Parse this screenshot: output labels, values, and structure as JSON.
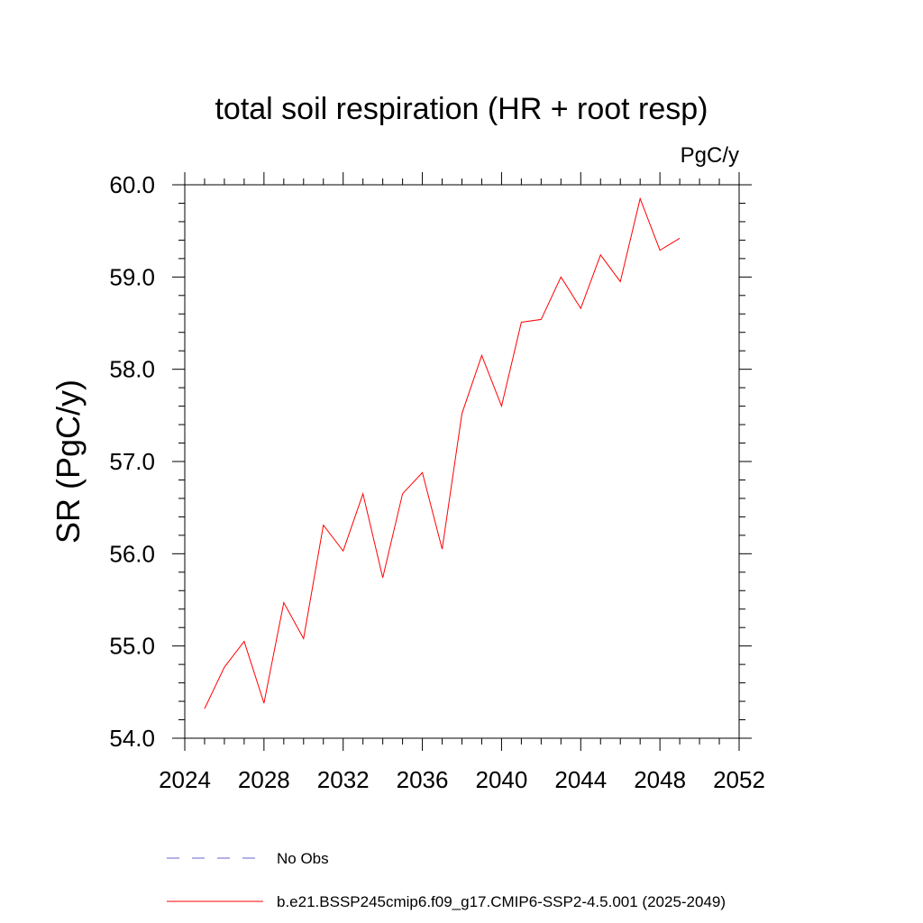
{
  "chart_data": {
    "type": "line",
    "title": "total soil respiration (HR + root resp)",
    "units_label": "PgC/y",
    "ylabel": "SR  (PgC/y)",
    "xlabel": "",
    "xlim": [
      2024,
      2052
    ],
    "ylim": [
      54.0,
      60.0
    ],
    "x_ticks": [
      2024,
      2028,
      2032,
      2036,
      2040,
      2044,
      2048,
      2052
    ],
    "x_tick_labels": [
      "2024",
      "2028",
      "2032",
      "2036",
      "2040",
      "2044",
      "2048",
      "2052"
    ],
    "y_ticks": [
      54.0,
      55.0,
      56.0,
      57.0,
      58.0,
      59.0,
      60.0
    ],
    "y_tick_labels": [
      "54.0",
      "55.0",
      "56.0",
      "57.0",
      "58.0",
      "59.0",
      "60.0"
    ],
    "x_minor_step": 1,
    "y_minor_step": 0.2,
    "grid": false,
    "legend_position": "bottom",
    "series": [
      {
        "name": "b.e21.BSSP245cmip6.f09_g17.CMIP6-SSP2-4.5.001 (2025-2049)",
        "color": "#ff0000",
        "style": "solid",
        "x": [
          2025,
          2026,
          2027,
          2028,
          2029,
          2030,
          2031,
          2032,
          2033,
          2034,
          2035,
          2036,
          2037,
          2038,
          2039,
          2040,
          2041,
          2042,
          2043,
          2044,
          2045,
          2046,
          2047,
          2048,
          2049
        ],
        "values": [
          54.32,
          54.77,
          55.05,
          54.38,
          55.47,
          55.08,
          56.31,
          56.03,
          56.65,
          55.74,
          56.65,
          56.88,
          56.05,
          57.52,
          58.15,
          57.6,
          58.51,
          58.54,
          59.0,
          58.66,
          59.24,
          58.95,
          59.85,
          59.29,
          59.42
        ]
      }
    ],
    "legend": [
      {
        "label": "No Obs",
        "color": "#6666cc",
        "style": "dashed"
      },
      {
        "label": "b.e21.BSSP245cmip6.f09_g17.CMIP6-SSP2-4.5.001 (2025-2049)",
        "color": "#ff0000",
        "style": "solid"
      }
    ]
  }
}
